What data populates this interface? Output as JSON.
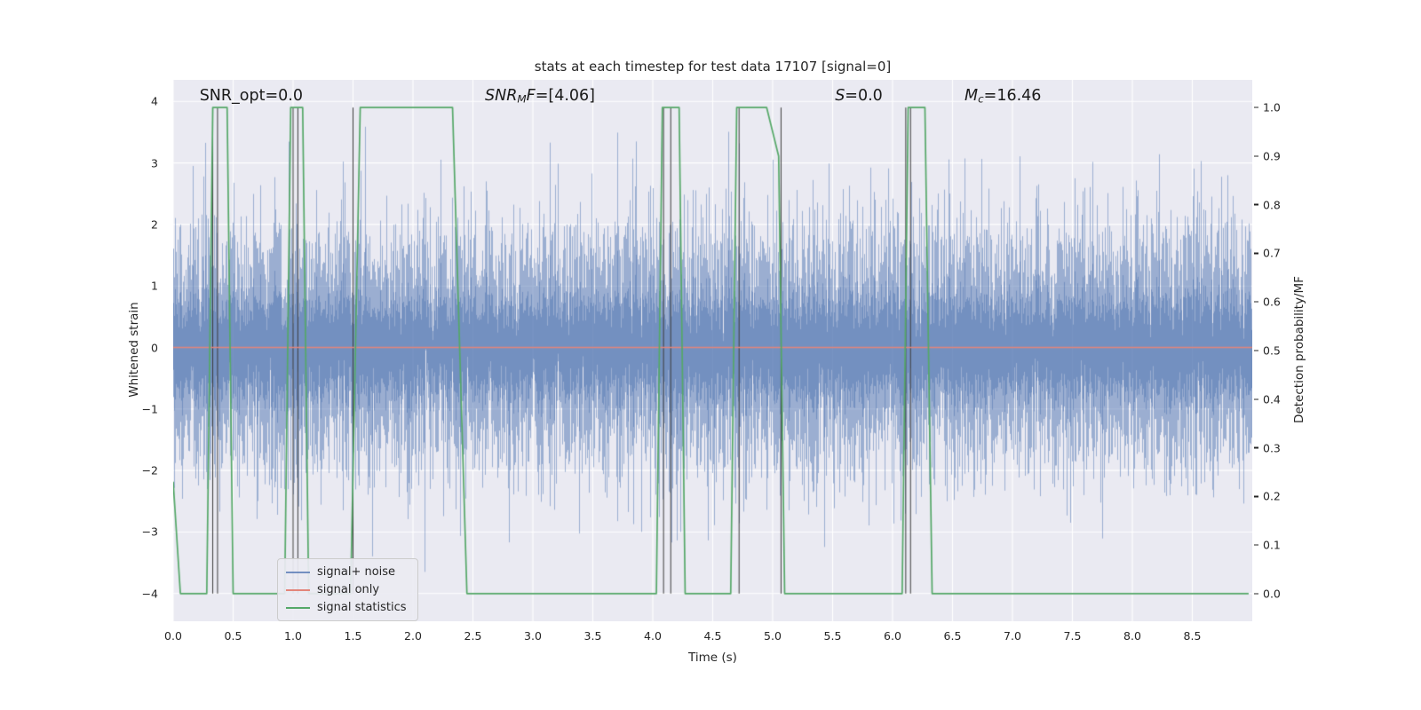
{
  "figure": {
    "title": "stats at each timestep for test data 17107 [signal=0]",
    "xlabel": "Time (s)",
    "ylabel_left": "Whitened strain",
    "ylabel_right": "Detection probability/MF"
  },
  "chart_data": {
    "type": "line",
    "title": "stats at each timestep for test data 17107 [signal=0]",
    "xlabel": "Time (s)",
    "ylabel_left": "Whitened strain",
    "ylabel_right": "Detection probability/MF",
    "xlim": [
      0,
      9.0
    ],
    "ylim_left": [
      -4.45,
      4.35
    ],
    "right_axis_strain_map": [
      -4.0,
      3.9
    ],
    "x_ticks": [
      0,
      0.5,
      1,
      1.5,
      2,
      2.5,
      3,
      3.5,
      4,
      4.5,
      5,
      5.5,
      6,
      6.5,
      7,
      7.5,
      8,
      8.5
    ],
    "x_tick_labels": [
      "0.0",
      "0.5",
      "1.0",
      "1.5",
      "2.0",
      "2.5",
      "3.0",
      "3.5",
      "4.0",
      "4.5",
      "5.0",
      "5.5",
      "6.0",
      "6.5",
      "7.0",
      "7.5",
      "8.0",
      "8.5"
    ],
    "y_ticks_left": [
      4,
      3,
      2,
      1,
      0,
      -1,
      -2,
      -3,
      -4
    ],
    "y_tick_labels_left": [
      "4",
      "3",
      "2",
      "1",
      "0",
      "−1",
      "−2",
      "−3",
      "−4"
    ],
    "y_ticks_right": [
      1.0,
      0.9,
      0.8,
      0.7,
      0.6,
      0.5,
      0.4,
      0.3,
      0.2,
      0.1,
      0.0
    ],
    "y_tick_labels_right": [
      "1.0",
      "0.9",
      "0.8",
      "0.7",
      "0.6",
      "0.5",
      "0.4",
      "0.3",
      "0.2",
      "0.1",
      "0.0"
    ],
    "grid": true,
    "legend_position": "lower left",
    "annotations": [
      {
        "x": 0.22,
        "text": "SNR_opt=0.0",
        "segments": [
          {
            "t": "SNR_opt=0.0",
            "s": "plain"
          }
        ]
      },
      {
        "x": 2.6,
        "text": "SNR_MF=[4.06]",
        "segments": [
          {
            "t": "SNR",
            "s": "italic"
          },
          {
            "t": "M",
            "s": "sub"
          },
          {
            "t": "F",
            "s": "italic"
          },
          {
            "t": "=[4.06]",
            "s": "plain"
          }
        ]
      },
      {
        "x": 5.52,
        "text": "S=0.0",
        "segments": [
          {
            "t": "S",
            "s": "italic"
          },
          {
            "t": "=0.0",
            "s": "plain"
          }
        ]
      },
      {
        "x": 6.6,
        "text": "M_c=16.46",
        "segments": [
          {
            "t": "M",
            "s": "italic"
          },
          {
            "t": "c",
            "s": "sub"
          },
          {
            "t": "=16.46",
            "s": "plain"
          }
        ]
      }
    ],
    "series": [
      {
        "name": "signal+ noise",
        "kind": "noise",
        "axis": "left",
        "color": "#4c72b0",
        "alpha": 0.5,
        "std": 0.95,
        "samples_per_column": 12,
        "seed": 17107
      },
      {
        "name": "signal only",
        "kind": "line",
        "axis": "left",
        "color": "#e3857a",
        "points": [
          [
            0,
            0
          ],
          [
            9,
            0
          ]
        ]
      },
      {
        "name": "signal statistics",
        "kind": "line",
        "axis": "right",
        "color": "#55a868",
        "points": [
          [
            0,
            0.23
          ],
          [
            0.06,
            0
          ],
          [
            0.28,
            0
          ],
          [
            0.33,
            1
          ],
          [
            0.45,
            1
          ],
          [
            0.5,
            0
          ],
          [
            0.93,
            0
          ],
          [
            0.98,
            1
          ],
          [
            1.08,
            1
          ],
          [
            1.13,
            0
          ],
          [
            1.48,
            0
          ],
          [
            1.56,
            1
          ],
          [
            2.33,
            1
          ],
          [
            2.45,
            0
          ],
          [
            4.03,
            0
          ],
          [
            4.08,
            1
          ],
          [
            4.22,
            1
          ],
          [
            4.27,
            0
          ],
          [
            4.65,
            0
          ],
          [
            4.7,
            1
          ],
          [
            4.95,
            1
          ],
          [
            5.05,
            0.9
          ],
          [
            5.1,
            0
          ],
          [
            6.08,
            0
          ],
          [
            6.13,
            1
          ],
          [
            6.27,
            1
          ],
          [
            6.33,
            0
          ],
          [
            8.97,
            0
          ]
        ]
      }
    ],
    "event_lines": {
      "times": [
        0.33,
        0.37,
        1.0,
        1.04,
        1.5,
        4.09,
        4.15,
        4.72,
        5.07,
        6.11,
        6.15
      ],
      "color": "#3c3c3c",
      "strain_range": [
        -4.0,
        3.9
      ]
    },
    "colors": {
      "axes_background": "#eaeaf2",
      "grid": "#ffffff",
      "text": "#262626"
    }
  }
}
